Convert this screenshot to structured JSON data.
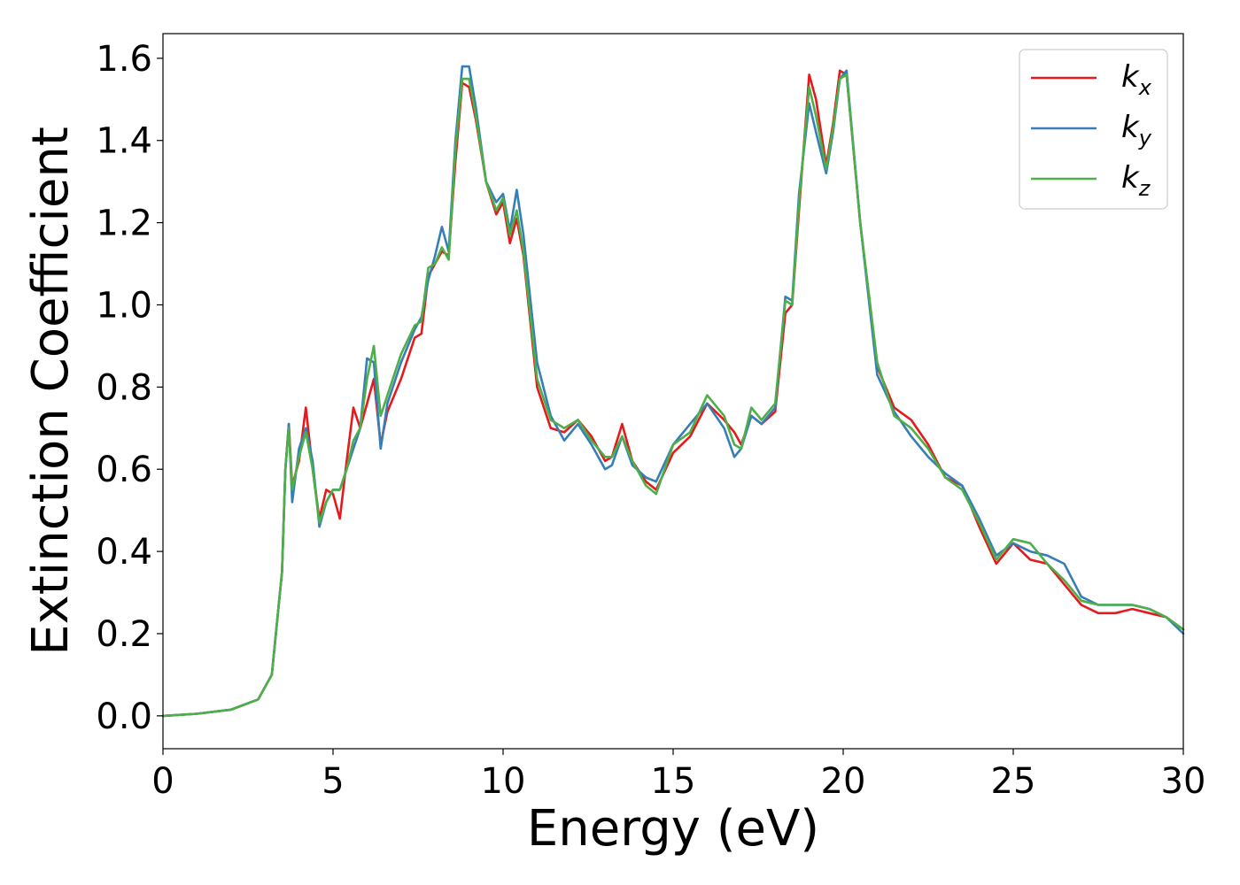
{
  "chart_data": {
    "type": "line",
    "xlabel": "Energy (eV)",
    "ylabel": "Extinction Coefficient",
    "xlim": [
      0,
      30
    ],
    "ylim": [
      -0.08,
      1.66
    ],
    "xticks": [
      "0",
      "5",
      "10",
      "15",
      "20",
      "25",
      "30"
    ],
    "yticks": [
      "0.0",
      "0.2",
      "0.4",
      "0.6",
      "0.8",
      "1.0",
      "1.2",
      "1.4",
      "1.6"
    ],
    "grid": false,
    "legend": {
      "placement": "top-right",
      "entries": [
        {
          "label": "k",
          "sub": "x",
          "color": "#e41a1c"
        },
        {
          "label": "k",
          "sub": "y",
          "color": "#377eb8"
        },
        {
          "label": "k",
          "sub": "z",
          "color": "#4daf4a"
        }
      ]
    },
    "x": [
      0,
      1,
      2,
      2.8,
      3.2,
      3.5,
      3.6,
      3.7,
      3.8,
      4.0,
      4.2,
      4.4,
      4.6,
      4.8,
      5.0,
      5.2,
      5.4,
      5.6,
      5.8,
      6.0,
      6.2,
      6.4,
      6.6,
      7.0,
      7.4,
      7.6,
      7.8,
      8.0,
      8.2,
      8.4,
      8.6,
      8.8,
      9.0,
      9.2,
      9.5,
      9.8,
      10.0,
      10.2,
      10.4,
      10.6,
      11.0,
      11.4,
      11.8,
      12.2,
      12.6,
      13.0,
      13.2,
      13.5,
      13.8,
      14.2,
      14.5,
      15.0,
      15.5,
      16.0,
      16.5,
      16.8,
      17.0,
      17.3,
      17.6,
      18.0,
      18.3,
      18.5,
      18.7,
      19.0,
      19.2,
      19.5,
      19.7,
      19.9,
      20.1,
      20.5,
      21.0,
      21.5,
      22.0,
      22.5,
      23.0,
      23.5,
      24.0,
      24.5,
      25.0,
      25.5,
      26.0,
      26.5,
      27.0,
      27.5,
      28.0,
      28.5,
      29.0,
      29.5,
      30.0
    ],
    "series": [
      {
        "name": "k_x",
        "color": "#e41a1c",
        "values": [
          0.0,
          0.005,
          0.015,
          0.04,
          0.1,
          0.35,
          0.6,
          0.71,
          0.56,
          0.62,
          0.75,
          0.6,
          0.48,
          0.55,
          0.54,
          0.48,
          0.62,
          0.75,
          0.7,
          0.76,
          0.82,
          0.66,
          0.74,
          0.82,
          0.92,
          0.93,
          1.07,
          1.1,
          1.13,
          1.12,
          1.35,
          1.54,
          1.53,
          1.45,
          1.3,
          1.22,
          1.25,
          1.15,
          1.21,
          1.12,
          0.8,
          0.7,
          0.69,
          0.72,
          0.68,
          0.62,
          0.63,
          0.71,
          0.62,
          0.57,
          0.55,
          0.64,
          0.68,
          0.76,
          0.72,
          0.69,
          0.66,
          0.73,
          0.71,
          0.74,
          0.98,
          1.0,
          1.23,
          1.56,
          1.5,
          1.34,
          1.44,
          1.57,
          1.56,
          1.2,
          0.85,
          0.75,
          0.72,
          0.66,
          0.58,
          0.56,
          0.46,
          0.37,
          0.42,
          0.38,
          0.37,
          0.32,
          0.27,
          0.25,
          0.25,
          0.26,
          0.25,
          0.24,
          0.21
        ]
      },
      {
        "name": "k_y",
        "color": "#377eb8",
        "values": [
          0.0,
          0.005,
          0.015,
          0.04,
          0.1,
          0.35,
          0.6,
          0.71,
          0.52,
          0.65,
          0.7,
          0.62,
          0.46,
          0.52,
          0.55,
          0.55,
          0.6,
          0.65,
          0.7,
          0.87,
          0.86,
          0.65,
          0.76,
          0.86,
          0.94,
          0.97,
          1.06,
          1.12,
          1.19,
          1.13,
          1.4,
          1.58,
          1.58,
          1.48,
          1.3,
          1.25,
          1.27,
          1.18,
          1.28,
          1.17,
          0.86,
          0.73,
          0.67,
          0.71,
          0.66,
          0.6,
          0.61,
          0.68,
          0.61,
          0.58,
          0.57,
          0.66,
          0.71,
          0.76,
          0.7,
          0.63,
          0.65,
          0.73,
          0.71,
          0.75,
          1.02,
          1.01,
          1.27,
          1.49,
          1.42,
          1.32,
          1.42,
          1.55,
          1.57,
          1.2,
          0.83,
          0.74,
          0.68,
          0.63,
          0.59,
          0.56,
          0.48,
          0.39,
          0.42,
          0.4,
          0.39,
          0.37,
          0.29,
          0.27,
          0.27,
          0.27,
          0.26,
          0.24,
          0.2
        ]
      },
      {
        "name": "k_z",
        "color": "#4daf4a",
        "values": [
          0.0,
          0.005,
          0.015,
          0.04,
          0.1,
          0.35,
          0.6,
          0.7,
          0.55,
          0.63,
          0.69,
          0.6,
          0.47,
          0.52,
          0.55,
          0.55,
          0.6,
          0.67,
          0.7,
          0.82,
          0.9,
          0.73,
          0.78,
          0.88,
          0.95,
          0.96,
          1.09,
          1.1,
          1.14,
          1.11,
          1.38,
          1.55,
          1.55,
          1.46,
          1.3,
          1.23,
          1.26,
          1.17,
          1.23,
          1.13,
          0.82,
          0.72,
          0.7,
          0.72,
          0.67,
          0.63,
          0.63,
          0.68,
          0.62,
          0.56,
          0.54,
          0.66,
          0.69,
          0.78,
          0.73,
          0.66,
          0.65,
          0.75,
          0.72,
          0.76,
          1.01,
          1.0,
          1.25,
          1.53,
          1.46,
          1.33,
          1.43,
          1.55,
          1.56,
          1.2,
          0.86,
          0.73,
          0.7,
          0.65,
          0.58,
          0.55,
          0.47,
          0.38,
          0.43,
          0.42,
          0.37,
          0.33,
          0.28,
          0.27,
          0.27,
          0.27,
          0.26,
          0.24,
          0.21
        ]
      }
    ]
  }
}
